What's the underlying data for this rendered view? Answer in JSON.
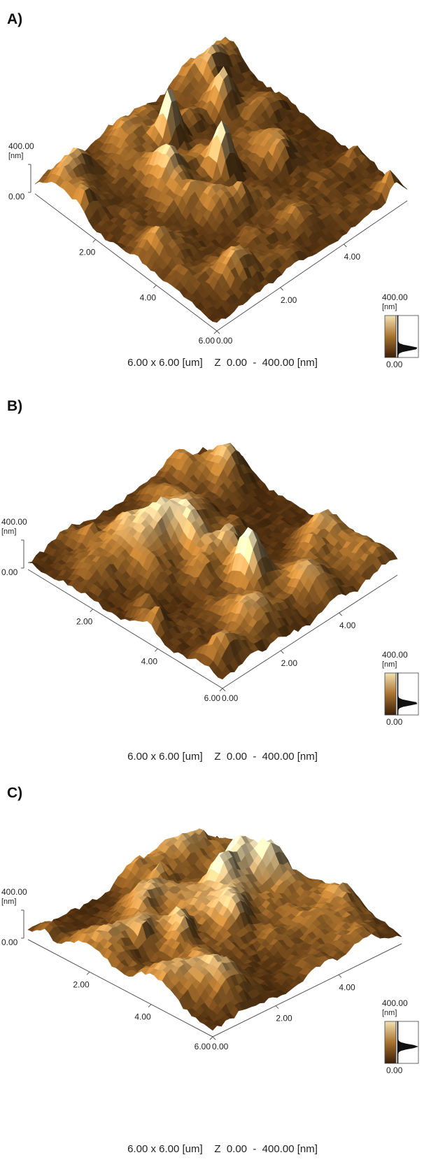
{
  "panels": [
    {
      "id": "A",
      "label": "A)",
      "z_axis_max": "400.00",
      "z_axis_unit": "[nm]",
      "z_axis_min": "0.00",
      "x_axis_ticks": [
        "2.00",
        "4.00",
        "6.00"
      ],
      "y_axis_ticks": [
        "0.00",
        "2.00",
        "4.00"
      ],
      "colorbar_max": "400.00",
      "colorbar_unit": "[nm]",
      "colorbar_min": "0.00",
      "scan_info": "6.00 x 6.00 [um]    Z  0.00  -  400.00 [nm]",
      "roughness": 0.7,
      "seed": 11,
      "histogram_peak": 0.78
    },
    {
      "id": "B",
      "label": "B)",
      "z_axis_max": "400.00",
      "z_axis_unit": "[nm]",
      "z_axis_min": "0.00",
      "x_axis_ticks": [
        "2.00",
        "4.00",
        "6.00"
      ],
      "y_axis_ticks": [
        "0.00",
        "2.00",
        "4.00"
      ],
      "colorbar_max": "400.00",
      "colorbar_unit": "[nm]",
      "colorbar_min": "0.00",
      "scan_info": "6.00 x 6.00 [um]    Z  0.00  -  400.00 [nm]",
      "roughness": 0.9,
      "seed": 23,
      "histogram_peak": 0.72
    },
    {
      "id": "C",
      "label": "C)",
      "z_axis_max": "400.00",
      "z_axis_unit": "[nm]",
      "z_axis_min": "0.00",
      "x_axis_ticks": [
        "2.00",
        "4.00",
        "6.00"
      ],
      "y_axis_ticks": [
        "0.00",
        "2.00",
        "4.00"
      ],
      "colorbar_max": "400.00",
      "colorbar_unit": "[nm]",
      "colorbar_min": "0.00",
      "scan_info": "6.00 x 6.00 [um]    Z  0.00  -  400.00 [nm]",
      "roughness": 1.15,
      "seed": 37,
      "histogram_peak": 0.6
    }
  ],
  "colors": {
    "surface_dark": "#3a1f08",
    "surface_mid": "#a9722f",
    "surface_light": "#f3e2b3",
    "axis": "#555555"
  }
}
